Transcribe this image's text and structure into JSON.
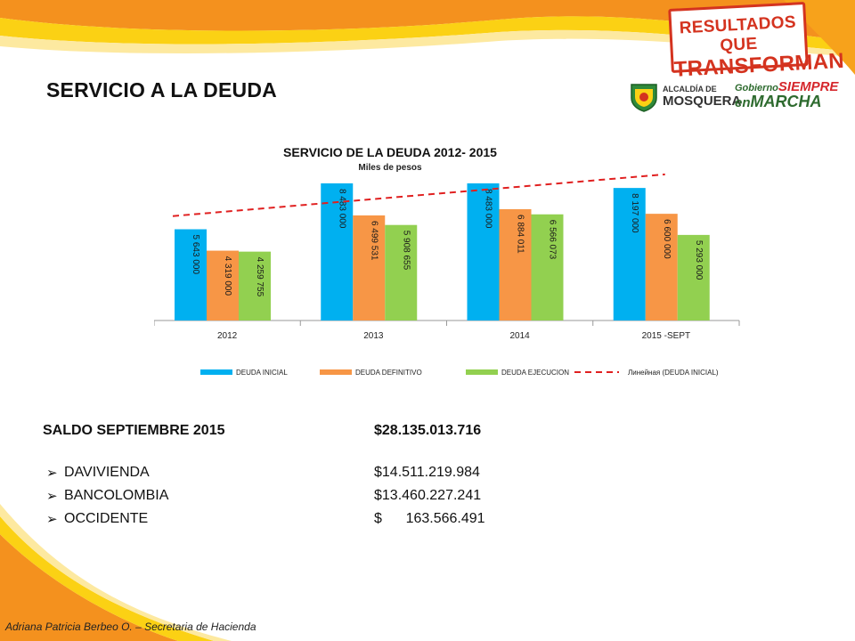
{
  "slide": {
    "title": "SERVICIO A LA DEUDA",
    "badge": {
      "line1": "RESULTADOS QUE",
      "line2": "TRANSFORMAN"
    },
    "logo_alcaldia": {
      "small": "ALCALDÍA DE",
      "name": "MOSQUERA"
    },
    "logo_gobierno": {
      "word1": "Gobierno",
      "word2": "SIEMPRE",
      "word3": "en",
      "word4": "MARCHA"
    },
    "footer": "Adriana Patricia Berbeo O. – Secretaria de Hacienda",
    "colors": {
      "orange": "#f4911e",
      "yellow": "#fbd114",
      "brand_red": "#d4331f"
    }
  },
  "balance": {
    "label": "SALDO SEPTIEMBRE 2015",
    "value": "$28.135.013.716",
    "banks": [
      {
        "name": "DAVIVIENDA",
        "value": "$14.511.219.984"
      },
      {
        "name": "BANCOLOMBIA",
        "value": "$13.460.227.241"
      },
      {
        "name": "OCCIDENTE",
        "value": "$      163.566.491"
      }
    ]
  },
  "chart_data": {
    "type": "bar",
    "title": "SERVICIO DE LA DEUDA 2012- 2015",
    "subtitle": "Miles de pesos",
    "categories": [
      "2012",
      "2013",
      "2014",
      "2015 -SEPT"
    ],
    "series": [
      {
        "name": "DEUDA INICIAL",
        "color": "#00b0f0",
        "values": [
          5643000,
          8483000,
          8483000,
          8197000
        ],
        "labels": [
          "5 643 000",
          "8 483 000",
          "8 483 000",
          "8 197 000"
        ]
      },
      {
        "name": "DEUDA DEFINITIVO",
        "color": "#f79646",
        "values": [
          4319000,
          6499531,
          6884011,
          6600000
        ],
        "labels": [
          "4 319 000",
          "6 499 531",
          "6 884 011",
          "6 600 000"
        ]
      },
      {
        "name": "DEUDA EJECUCION",
        "color": "#92d050",
        "values": [
          4259755,
          5908655,
          6566073,
          5293000
        ],
        "labels": [
          "4 259 755",
          "5 908 655",
          "6 566 073",
          "5 293 000"
        ]
      }
    ],
    "trendline": {
      "name": "Линейная (DEUDA INICIAL)",
      "series": "DEUDA INICIAL",
      "color": "#e02020",
      "style": "dashed"
    },
    "ylim": [
      0,
      8700000
    ],
    "legend": "bottom",
    "grid": false
  }
}
